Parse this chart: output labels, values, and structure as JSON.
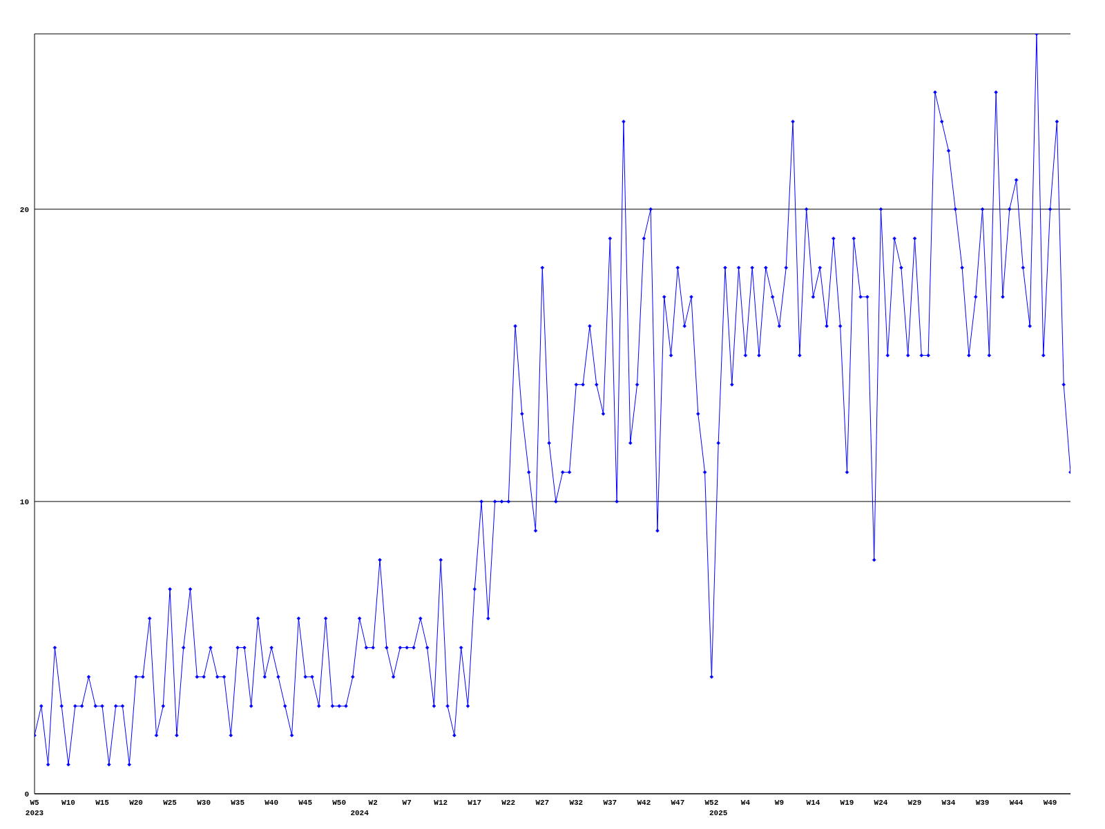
{
  "chart_data": {
    "type": "line",
    "categories": [
      "W5\n2023",
      null,
      null,
      null,
      null,
      "W10",
      null,
      null,
      null,
      null,
      "W15",
      null,
      null,
      null,
      null,
      "W20",
      null,
      null,
      null,
      null,
      "W25",
      null,
      null,
      null,
      null,
      "W30",
      null,
      null,
      null,
      null,
      "W35",
      null,
      null,
      null,
      null,
      "W40",
      null,
      null,
      null,
      null,
      "W45",
      null,
      null,
      null,
      null,
      "W50",
      null,
      null,
      "\n2024",
      null,
      "W2",
      null,
      null,
      null,
      null,
      "W7",
      null,
      null,
      null,
      null,
      "W12",
      null,
      null,
      null,
      null,
      "W17",
      null,
      null,
      null,
      null,
      "W22",
      null,
      null,
      null,
      null,
      "W27",
      null,
      null,
      null,
      null,
      "W32",
      null,
      null,
      null,
      null,
      "W37",
      null,
      null,
      null,
      null,
      "W42",
      null,
      null,
      null,
      null,
      "W47",
      null,
      null,
      null,
      null,
      "W52",
      "\n2025",
      null,
      null,
      null,
      "W4",
      null,
      null,
      null,
      null,
      "W9",
      null,
      null,
      null,
      null,
      "W14",
      null,
      null,
      null,
      null,
      "W19",
      null,
      null,
      null,
      null,
      "W24",
      null,
      null,
      null,
      null,
      "W29",
      null,
      null,
      null,
      null,
      "W34",
      null,
      null,
      null,
      null,
      "W39",
      null,
      null,
      null,
      null,
      "W44",
      null,
      null,
      null,
      null,
      "W49",
      null,
      null,
      null
    ],
    "series": [
      {
        "color": "#0000ff",
        "values": [
          2,
          3,
          1,
          5,
          3,
          1,
          3,
          3,
          4,
          3,
          3,
          1,
          3,
          3,
          1,
          4,
          4,
          6,
          2,
          3,
          7,
          2,
          5,
          7,
          4,
          4,
          5,
          4,
          4,
          2,
          5,
          5,
          3,
          6,
          4,
          5,
          4,
          3,
          2,
          6,
          4,
          4,
          3,
          6,
          3,
          3,
          3,
          4,
          6,
          5,
          5,
          8,
          5,
          4,
          5,
          5,
          5,
          6,
          5,
          3,
          8,
          3,
          2,
          5,
          3,
          7,
          10,
          6,
          10,
          10,
          10,
          16,
          13,
          11,
          9,
          18,
          12,
          10,
          11,
          11,
          14,
          14,
          16,
          14,
          13,
          19,
          10,
          23,
          12,
          14,
          19,
          20,
          9,
          17,
          15,
          18,
          16,
          17,
          13,
          11,
          4,
          12,
          18,
          14,
          18,
          15,
          18,
          15,
          18,
          17,
          16,
          18,
          23,
          15,
          20,
          17,
          18,
          16,
          19,
          16,
          11,
          19,
          17,
          17,
          8,
          20,
          15,
          19,
          18,
          15,
          19,
          15,
          15,
          24,
          23,
          22,
          20,
          18,
          15,
          17,
          20,
          15,
          24,
          17,
          20,
          21,
          18,
          16,
          26,
          15,
          20,
          23,
          14,
          11
        ]
      }
    ],
    "ylim": [
      0,
      26
    ],
    "yticks": [
      0,
      10,
      20
    ],
    "grid": "y",
    "marker": "diamond"
  }
}
